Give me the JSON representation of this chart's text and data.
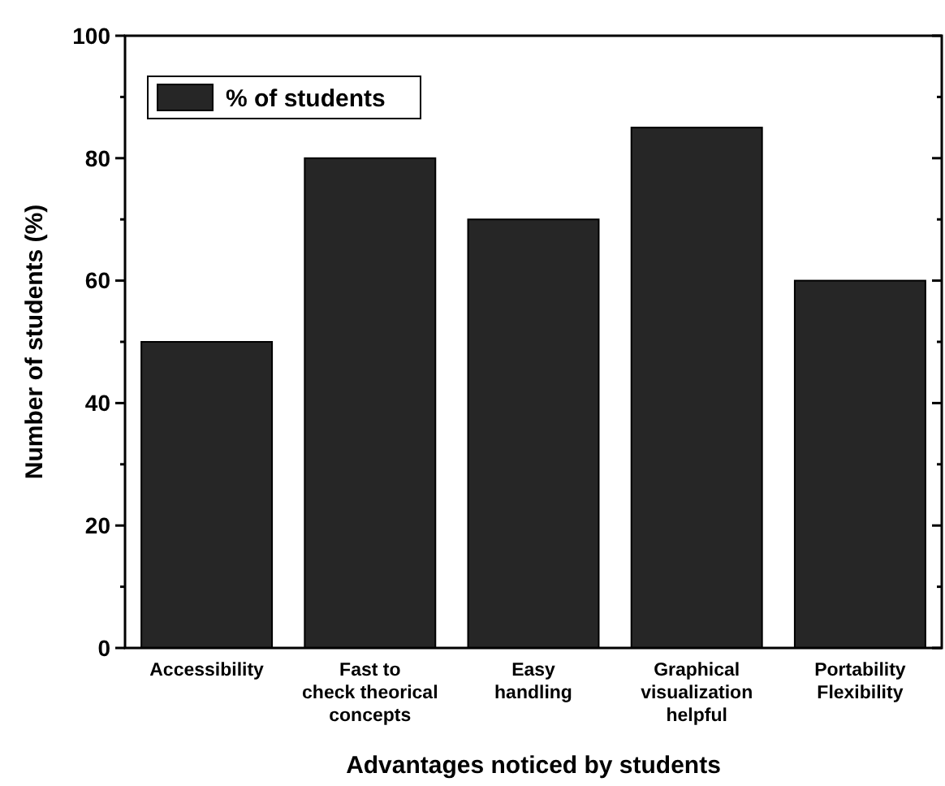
{
  "chart_data": {
    "type": "bar",
    "xlabel": "Advantages noticed by students",
    "ylabel": "Number of students (%)",
    "categories": [
      "Accessibility",
      "Fast to\ncheck theorical\nconcepts",
      "Easy\nhandling",
      "Graphical\nvisualization\nhelpful",
      "Portability\nFlexibility"
    ],
    "series": [
      {
        "name": "% of students",
        "color": "#262626",
        "values": [
          50,
          80,
          70,
          85,
          60
        ]
      }
    ],
    "ylim": [
      0,
      100
    ],
    "yticks": [
      0,
      {
        "value": 10,
        "label": null
      },
      20,
      {
        "value": 30,
        "label": null
      },
      40,
      {
        "value": 50,
        "label": null
      },
      60,
      {
        "value": 70,
        "label": null
      },
      80,
      {
        "value": 90,
        "label": null
      },
      100
    ],
    "legend": "top left",
    "grid": false
  }
}
